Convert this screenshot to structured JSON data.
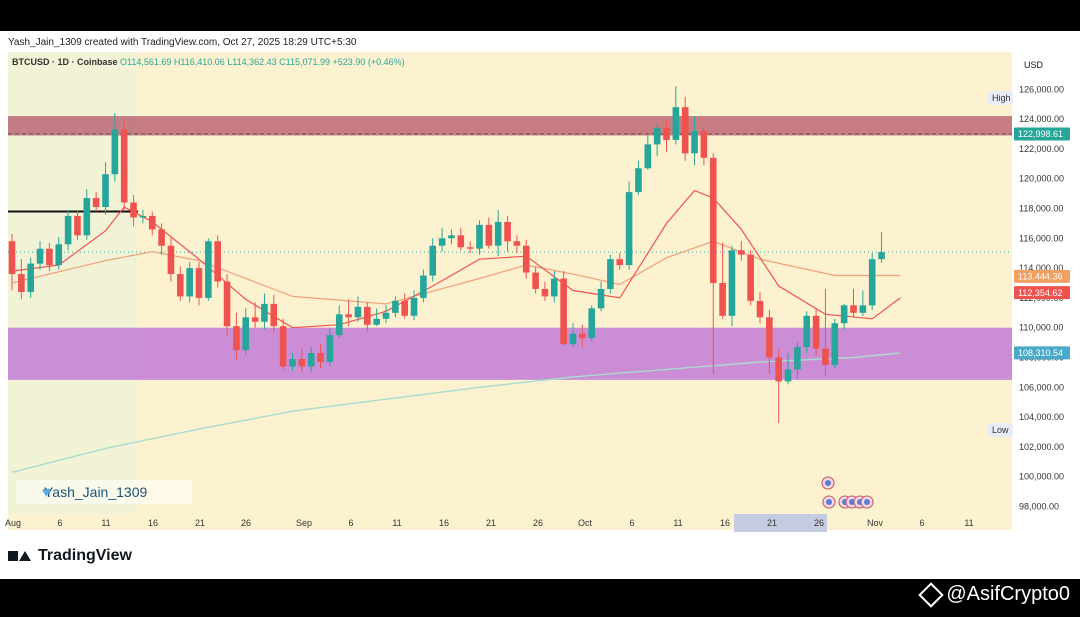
{
  "credit": "Yash_Jain_1309 created with TradingView.com, Oct 27, 2025 18:29 UTC+5:30",
  "header": {
    "symbol": "BTCUSD · 1D · Coinbase",
    "ohlc": "O114,561.69 H116,410.06 L114,362.43 C115,071.99 +523.90 (+0.46%)"
  },
  "currency": "USD",
  "high_label": "High",
  "low_label": "Low",
  "signature": "Yash_Jain_1309",
  "brand": "TradingView",
  "watermark": "@AsifCrypto0",
  "colors": {
    "up": "#26a69a",
    "down": "#ef5350",
    "bg": "#fdf2cf",
    "resistance": "#b5566a",
    "support": "#c27bd6",
    "ema_fast": "#ef5350",
    "ema_slow": "#f0a07a",
    "sma_long": "#a8dcd1"
  },
  "chart_data": {
    "type": "candlestick",
    "symbol": "BTCUSD",
    "interval": "1D",
    "ylim": [
      97500,
      128500
    ],
    "y_ticks": [
      98000,
      100000,
      102000,
      104000,
      106000,
      108000,
      110000,
      112000,
      114000,
      116000,
      118000,
      120000,
      122000,
      124000,
      126000
    ],
    "x_ticks": [
      "Aug",
      "6",
      "11",
      "16",
      "21",
      "26",
      "Sep",
      "6",
      "11",
      "16",
      "21",
      "26",
      "Oct",
      "6",
      "11",
      "16",
      "21",
      "26",
      "Nov",
      "6",
      "11"
    ],
    "price_labels": [
      {
        "label": "122,998.61",
        "value": 122998.61,
        "color": "#26a69a"
      },
      {
        "label": "113,444.36",
        "value": 113444.36,
        "color": "#f0a060"
      },
      {
        "label": "112,354.62",
        "value": 112354.62,
        "color": "#ef5350"
      },
      {
        "label": "108,310.54",
        "value": 108310.54,
        "color": "#4aa8c9"
      }
    ],
    "zones": [
      {
        "name": "resistance",
        "from": 122900,
        "to": 124200
      },
      {
        "name": "support",
        "from": 106500,
        "to": 110000
      }
    ],
    "candles": [
      [
        115800,
        113600,
        116300,
        112500
      ],
      [
        113600,
        112400,
        114600,
        111900
      ],
      [
        112400,
        114300,
        114700,
        112000
      ],
      [
        114300,
        115300,
        115800,
        113900
      ],
      [
        115300,
        114200,
        115700,
        113800
      ],
      [
        114200,
        115600,
        116100,
        113900
      ],
      [
        115600,
        117500,
        117900,
        115200
      ],
      [
        117500,
        116200,
        117900,
        115900
      ],
      [
        116200,
        118700,
        119300,
        115900
      ],
      [
        118700,
        118100,
        119100,
        117800
      ],
      [
        118100,
        120300,
        121100,
        117600
      ],
      [
        120300,
        123300,
        124400,
        119800
      ],
      [
        123300,
        118400,
        123900,
        117900
      ],
      [
        118400,
        117400,
        118900,
        116800
      ],
      [
        117400,
        117500,
        117900,
        117000
      ],
      [
        117500,
        116600,
        117800,
        116200
      ],
      [
        116600,
        115500,
        117000,
        114900
      ],
      [
        115500,
        113600,
        116100,
        113100
      ],
      [
        113600,
        112100,
        114100,
        111800
      ],
      [
        112100,
        114000,
        114400,
        111700
      ],
      [
        114000,
        112000,
        114400,
        111500
      ],
      [
        112000,
        115800,
        116000,
        111800
      ],
      [
        115800,
        113100,
        116200,
        112700
      ],
      [
        113100,
        110100,
        113600,
        109500
      ],
      [
        110100,
        108500,
        111000,
        107800
      ],
      [
        108500,
        110700,
        111300,
        108200
      ],
      [
        110700,
        110400,
        111700,
        110000
      ],
      [
        110400,
        111600,
        112300,
        109900
      ],
      [
        111600,
        110100,
        112200,
        109700
      ],
      [
        110100,
        107400,
        110600,
        107200
      ],
      [
        107400,
        107900,
        108300,
        107100
      ],
      [
        107900,
        107400,
        108600,
        107000
      ],
      [
        107400,
        108300,
        108700,
        107000
      ],
      [
        108300,
        107700,
        108900,
        107300
      ],
      [
        107700,
        109500,
        110000,
        107400
      ],
      [
        109500,
        110900,
        111500,
        109300
      ],
      [
        110900,
        110700,
        111900,
        110100
      ],
      [
        110700,
        111400,
        112100,
        110400
      ],
      [
        111400,
        110200,
        111700,
        109700
      ],
      [
        110200,
        110600,
        111300,
        110100
      ],
      [
        110600,
        111000,
        111500,
        110300
      ],
      [
        111000,
        111800,
        112100,
        110700
      ],
      [
        111800,
        110800,
        112300,
        110600
      ],
      [
        110800,
        112000,
        112500,
        110500
      ],
      [
        112000,
        113500,
        113900,
        111700
      ],
      [
        113500,
        115500,
        116000,
        113100
      ],
      [
        115500,
        116000,
        116700,
        115100
      ],
      [
        116000,
        116200,
        116600,
        115600
      ],
      [
        116200,
        115400,
        116700,
        115200
      ],
      [
        115400,
        115300,
        115800,
        115000
      ],
      [
        115300,
        116900,
        117200,
        114900
      ],
      [
        116900,
        115500,
        117400,
        115300
      ],
      [
        115500,
        117100,
        117900,
        114800
      ],
      [
        117100,
        115800,
        117500,
        115100
      ],
      [
        115800,
        115500,
        116200,
        115000
      ],
      [
        115500,
        113700,
        115900,
        113300
      ],
      [
        113700,
        112600,
        114100,
        112300
      ],
      [
        112600,
        112100,
        113100,
        111800
      ],
      [
        112100,
        113300,
        113800,
        111700
      ],
      [
        113300,
        108900,
        113800,
        108800
      ],
      [
        108900,
        109600,
        110300,
        108700
      ],
      [
        109600,
        109300,
        110200,
        108700
      ],
      [
        109300,
        111300,
        111500,
        109100
      ],
      [
        111300,
        112600,
        113100,
        111100
      ],
      [
        112600,
        114600,
        114900,
        112300
      ],
      [
        114600,
        114200,
        115000,
        113900
      ],
      [
        114200,
        119100,
        119800,
        113900
      ],
      [
        119100,
        120700,
        121200,
        118900
      ],
      [
        120700,
        122300,
        122900,
        120600
      ],
      [
        122300,
        123400,
        123700,
        121500
      ],
      [
        123400,
        122600,
        123900,
        121800
      ],
      [
        122600,
        124800,
        126200,
        122300
      ],
      [
        124800,
        121700,
        125500,
        121200
      ],
      [
        121700,
        123200,
        124200,
        120900
      ],
      [
        123200,
        121400,
        123600,
        120900
      ],
      [
        121400,
        113000,
        121700,
        106900
      ],
      [
        113000,
        110800,
        115700,
        110600
      ],
      [
        110800,
        115200,
        115500,
        110100
      ],
      [
        115200,
        114900,
        115800,
        114500
      ],
      [
        114900,
        111800,
        115200,
        111500
      ],
      [
        111800,
        110700,
        112400,
        110300
      ],
      [
        110700,
        108000,
        111200,
        106900
      ],
      [
        108000,
        106400,
        108600,
        103600
      ],
      [
        106400,
        107200,
        108300,
        106200
      ],
      [
        107200,
        108700,
        109000,
        106600
      ],
      [
        108700,
        110800,
        111100,
        108300
      ],
      [
        110800,
        108600,
        111300,
        108100
      ],
      [
        108600,
        107500,
        112600,
        106800
      ],
      [
        107500,
        110300,
        110600,
        107300
      ],
      [
        110300,
        111500,
        111600,
        109900
      ],
      [
        111500,
        111000,
        112600,
        110700
      ],
      [
        111000,
        111500,
        112500,
        110800
      ],
      [
        111500,
        114600,
        115000,
        111200
      ],
      [
        114600,
        115072,
        116410,
        114362
      ]
    ],
    "ema_fast": [
      [
        0,
        113800
      ],
      [
        5,
        114200
      ],
      [
        10,
        116500
      ],
      [
        12,
        118100
      ],
      [
        15,
        117100
      ],
      [
        20,
        114600
      ],
      [
        25,
        111900
      ],
      [
        30,
        110000
      ],
      [
        35,
        110200
      ],
      [
        40,
        111100
      ],
      [
        45,
        112800
      ],
      [
        50,
        114600
      ],
      [
        55,
        114800
      ],
      [
        60,
        112500
      ],
      [
        65,
        112000
      ],
      [
        70,
        117000
      ],
      [
        73,
        119200
      ],
      [
        75,
        118700
      ],
      [
        78,
        116600
      ],
      [
        82,
        112800
      ],
      [
        87,
        110900
      ],
      [
        92,
        110600
      ],
      [
        95,
        112000
      ]
    ],
    "ema_slow": [
      [
        0,
        113000
      ],
      [
        10,
        114500
      ],
      [
        15,
        115100
      ],
      [
        20,
        114500
      ],
      [
        30,
        112100
      ],
      [
        40,
        111600
      ],
      [
        50,
        113300
      ],
      [
        55,
        114200
      ],
      [
        60,
        113600
      ],
      [
        65,
        112900
      ],
      [
        70,
        114700
      ],
      [
        75,
        115800
      ],
      [
        80,
        114600
      ],
      [
        88,
        113500
      ],
      [
        95,
        113500
      ]
    ],
    "sma_long": [
      [
        0,
        100300
      ],
      [
        10,
        101900
      ],
      [
        20,
        103200
      ],
      [
        30,
        104400
      ],
      [
        40,
        105200
      ],
      [
        50,
        106000
      ],
      [
        60,
        106700
      ],
      [
        70,
        107200
      ],
      [
        80,
        107700
      ],
      [
        90,
        108000
      ],
      [
        95,
        108300
      ]
    ]
  }
}
